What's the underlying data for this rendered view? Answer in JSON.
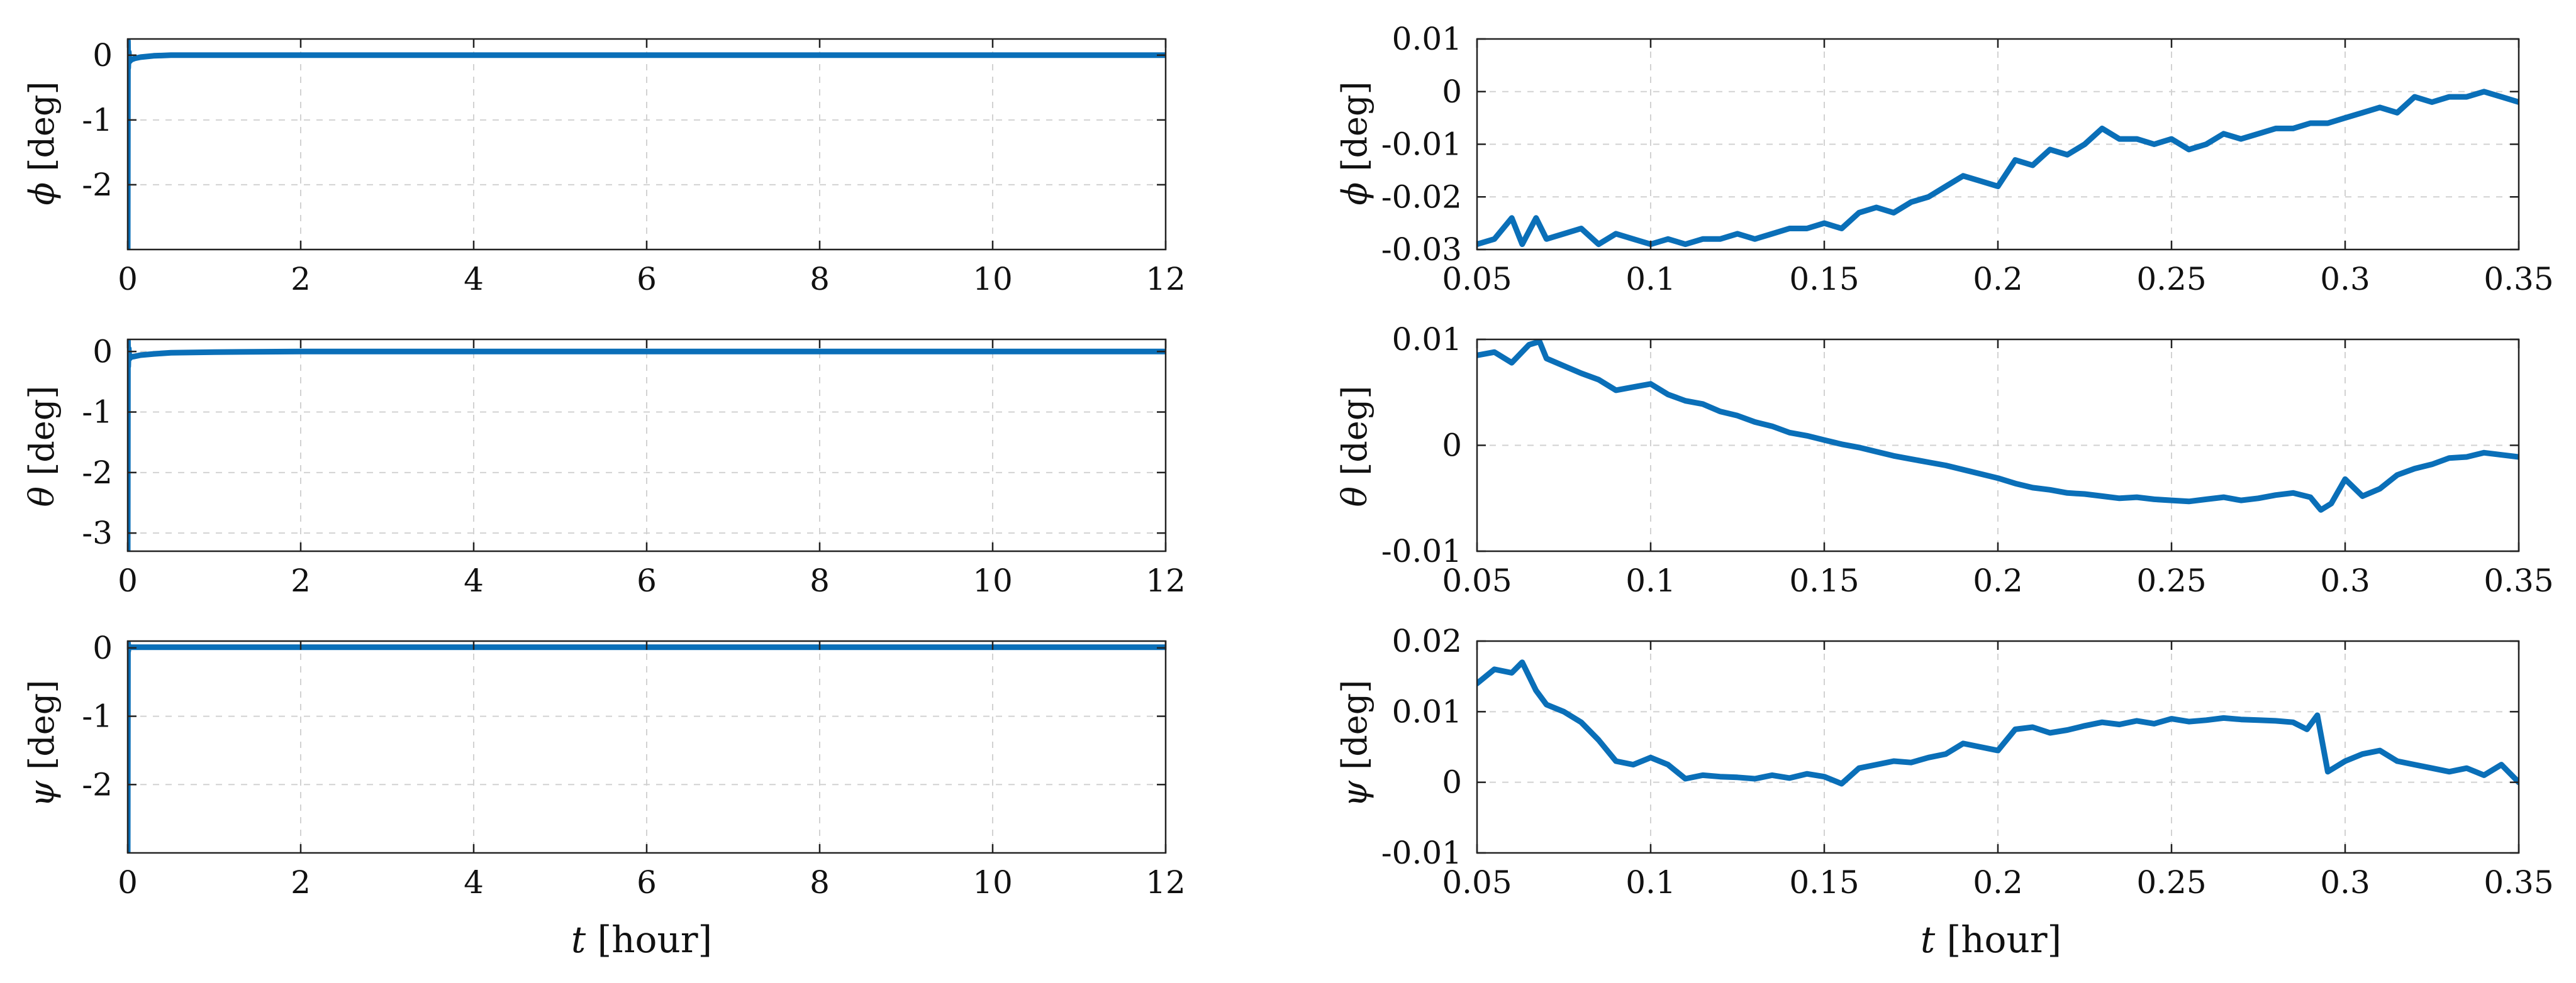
{
  "colors": {
    "line": "#0a6fb8",
    "grid": "#d2d2d2",
    "axis": "#222222"
  },
  "chart_data": [
    {
      "id": "phi_full",
      "type": "line",
      "title": "",
      "xlabel": "",
      "ylabel": "ϕ [deg]",
      "ylabel_symbol": "ϕ",
      "ylabel_unit": "[deg]",
      "xlim": [
        0,
        12
      ],
      "ylim": [
        -3,
        0.25
      ],
      "xticks": [
        0,
        2,
        4,
        6,
        8,
        10,
        12
      ],
      "xtick_labels": [
        "0",
        "2",
        "4",
        "6",
        "8",
        "10",
        "12"
      ],
      "yticks": [
        0,
        -1,
        -2
      ],
      "ytick_labels": [
        "0",
        "-1",
        "-2"
      ],
      "grid": true,
      "series": [
        {
          "name": "phi",
          "x": [
            0,
            0.003,
            0.006,
            0.012,
            0.02,
            0.04,
            0.08,
            0.15,
            0.3,
            0.5,
            1,
            2,
            4,
            6,
            8,
            10,
            12
          ],
          "y": [
            -3,
            0.22,
            -0.2,
            0.05,
            -0.1,
            -0.07,
            -0.05,
            -0.03,
            -0.01,
            0.0,
            0.0,
            0.0,
            0.0,
            0.0,
            0.0,
            0.0,
            0.0
          ]
        }
      ]
    },
    {
      "id": "phi_zoom",
      "type": "line",
      "title": "",
      "xlabel": "",
      "ylabel": "ϕ [deg]",
      "ylabel_symbol": "ϕ",
      "ylabel_unit": "[deg]",
      "xlim": [
        0.05,
        0.35
      ],
      "ylim": [
        -0.03,
        0.01
      ],
      "xticks": [
        0.05,
        0.1,
        0.15,
        0.2,
        0.25,
        0.3,
        0.35
      ],
      "xtick_labels": [
        "0.05",
        "0.1",
        "0.15",
        "0.2",
        "0.25",
        "0.3",
        "0.35"
      ],
      "yticks": [
        0.01,
        0,
        -0.01,
        -0.02,
        -0.03
      ],
      "ytick_labels": [
        "0.01",
        "0",
        "-0.01",
        "-0.02",
        "-0.03"
      ],
      "grid": true,
      "series": [
        {
          "name": "phi",
          "x": [
            0.05,
            0.055,
            0.06,
            0.063,
            0.067,
            0.07,
            0.075,
            0.08,
            0.085,
            0.09,
            0.095,
            0.1,
            0.105,
            0.11,
            0.115,
            0.12,
            0.125,
            0.13,
            0.135,
            0.14,
            0.145,
            0.15,
            0.155,
            0.16,
            0.165,
            0.17,
            0.175,
            0.18,
            0.185,
            0.19,
            0.195,
            0.2,
            0.205,
            0.21,
            0.215,
            0.22,
            0.225,
            0.23,
            0.235,
            0.24,
            0.245,
            0.25,
            0.255,
            0.26,
            0.265,
            0.27,
            0.275,
            0.28,
            0.285,
            0.29,
            0.295,
            0.3,
            0.305,
            0.31,
            0.315,
            0.32,
            0.325,
            0.33,
            0.335,
            0.34,
            0.345,
            0.35
          ],
          "y": [
            -0.029,
            -0.028,
            -0.024,
            -0.029,
            -0.024,
            -0.028,
            -0.027,
            -0.026,
            -0.029,
            -0.027,
            -0.028,
            -0.029,
            -0.028,
            -0.029,
            -0.028,
            -0.028,
            -0.027,
            -0.028,
            -0.027,
            -0.026,
            -0.026,
            -0.025,
            -0.026,
            -0.023,
            -0.022,
            -0.023,
            -0.021,
            -0.02,
            -0.018,
            -0.016,
            -0.017,
            -0.018,
            -0.013,
            -0.014,
            -0.011,
            -0.012,
            -0.01,
            -0.007,
            -0.009,
            -0.009,
            -0.01,
            -0.009,
            -0.011,
            -0.01,
            -0.008,
            -0.009,
            -0.008,
            -0.007,
            -0.007,
            -0.006,
            -0.006,
            -0.005,
            -0.004,
            -0.003,
            -0.004,
            -0.001,
            -0.002,
            -0.001,
            -0.001,
            0.0,
            -0.001,
            -0.002
          ]
        }
      ]
    },
    {
      "id": "theta_full",
      "type": "line",
      "title": "",
      "xlabel": "",
      "ylabel": "θ [deg]",
      "ylabel_symbol": "θ",
      "ylabel_unit": "[deg]",
      "xlim": [
        0,
        12
      ],
      "ylim": [
        -3.3,
        0.2
      ],
      "xticks": [
        0,
        2,
        4,
        6,
        8,
        10,
        12
      ],
      "xtick_labels": [
        "0",
        "2",
        "4",
        "6",
        "8",
        "10",
        "12"
      ],
      "yticks": [
        0,
        -1,
        -2,
        -3
      ],
      "ytick_labels": [
        "0",
        "-1",
        "-2",
        "-3"
      ],
      "grid": true,
      "series": [
        {
          "name": "theta",
          "x": [
            0,
            0.003,
            0.006,
            0.012,
            0.02,
            0.04,
            0.08,
            0.15,
            0.3,
            0.5,
            1,
            2,
            4,
            6,
            8,
            10,
            12
          ],
          "y": [
            -3.3,
            0.18,
            -0.25,
            0.05,
            -0.12,
            -0.09,
            -0.08,
            -0.06,
            -0.04,
            -0.02,
            -0.01,
            0.0,
            0.0,
            0.0,
            0.0,
            0.0,
            0.0
          ]
        }
      ]
    },
    {
      "id": "theta_zoom",
      "type": "line",
      "title": "",
      "xlabel": "",
      "ylabel": "θ [deg]",
      "ylabel_symbol": "θ",
      "ylabel_unit": "[deg]",
      "xlim": [
        0.05,
        0.35
      ],
      "ylim": [
        -0.01,
        0.01
      ],
      "xticks": [
        0.05,
        0.1,
        0.15,
        0.2,
        0.25,
        0.3,
        0.35
      ],
      "xtick_labels": [
        "0.05",
        "0.1",
        "0.15",
        "0.2",
        "0.25",
        "0.3",
        "0.35"
      ],
      "yticks": [
        0.01,
        0,
        -0.01
      ],
      "ytick_labels": [
        "0.01",
        "0",
        "-0.01"
      ],
      "grid": true,
      "series": [
        {
          "name": "theta",
          "x": [
            0.05,
            0.055,
            0.06,
            0.065,
            0.068,
            0.07,
            0.075,
            0.08,
            0.085,
            0.09,
            0.095,
            0.1,
            0.105,
            0.11,
            0.115,
            0.12,
            0.125,
            0.13,
            0.135,
            0.14,
            0.145,
            0.15,
            0.155,
            0.16,
            0.165,
            0.17,
            0.175,
            0.18,
            0.185,
            0.19,
            0.195,
            0.2,
            0.205,
            0.21,
            0.215,
            0.22,
            0.225,
            0.23,
            0.235,
            0.24,
            0.245,
            0.25,
            0.255,
            0.26,
            0.265,
            0.27,
            0.275,
            0.28,
            0.285,
            0.29,
            0.293,
            0.296,
            0.3,
            0.305,
            0.31,
            0.315,
            0.32,
            0.325,
            0.33,
            0.335,
            0.34,
            0.345,
            0.35
          ],
          "y": [
            0.0085,
            0.0088,
            0.0078,
            0.0095,
            0.0098,
            0.0082,
            0.0075,
            0.0068,
            0.0062,
            0.0052,
            0.0055,
            0.0058,
            0.0048,
            0.0042,
            0.0039,
            0.0032,
            0.0028,
            0.0022,
            0.0018,
            0.0012,
            0.0009,
            0.0005,
            0.0001,
            -0.0002,
            -0.0006,
            -0.001,
            -0.0013,
            -0.0016,
            -0.0019,
            -0.0023,
            -0.0027,
            -0.0031,
            -0.0036,
            -0.004,
            -0.0042,
            -0.0045,
            -0.0046,
            -0.0048,
            -0.005,
            -0.0049,
            -0.0051,
            -0.0052,
            -0.0053,
            -0.0051,
            -0.0049,
            -0.0052,
            -0.005,
            -0.0047,
            -0.0045,
            -0.0049,
            -0.0061,
            -0.0055,
            -0.0032,
            -0.0048,
            -0.0041,
            -0.0028,
            -0.0022,
            -0.0018,
            -0.0012,
            -0.0011,
            -0.0007,
            -0.0009,
            -0.0011
          ]
        }
      ]
    },
    {
      "id": "psi_full",
      "type": "line",
      "title": "",
      "xlabel": "t [hour]",
      "ylabel": "ψ [deg]",
      "ylabel_symbol": "ψ",
      "ylabel_unit": "[deg]",
      "xlabel_symbol": "t",
      "xlabel_unit": "[hour]",
      "xlim": [
        0,
        12
      ],
      "ylim": [
        -3,
        0.1
      ],
      "xticks": [
        0,
        2,
        4,
        6,
        8,
        10,
        12
      ],
      "xtick_labels": [
        "0",
        "2",
        "4",
        "6",
        "8",
        "10",
        "12"
      ],
      "yticks": [
        0,
        -1,
        -2
      ],
      "ytick_labels": [
        "0",
        "-1",
        "-2"
      ],
      "grid": true,
      "series": [
        {
          "name": "psi",
          "x": [
            0,
            0.003,
            0.006,
            0.012,
            0.03,
            0.1,
            0.3,
            1,
            2,
            4,
            6,
            8,
            10,
            12
          ],
          "y": [
            -3,
            0.08,
            -0.05,
            0.03,
            0.01,
            0.01,
            0.01,
            0.01,
            0.01,
            0.01,
            0.01,
            0.01,
            0.01,
            0.01
          ]
        }
      ]
    },
    {
      "id": "psi_zoom",
      "type": "line",
      "title": "",
      "xlabel": "t [hour]",
      "ylabel": "ψ [deg]",
      "ylabel_symbol": "ψ",
      "ylabel_unit": "[deg]",
      "xlabel_symbol": "t",
      "xlabel_unit": "[hour]",
      "xlim": [
        0.05,
        0.35
      ],
      "ylim": [
        -0.01,
        0.02
      ],
      "xticks": [
        0.05,
        0.1,
        0.15,
        0.2,
        0.25,
        0.3,
        0.35
      ],
      "xtick_labels": [
        "0.05",
        "0.1",
        "0.15",
        "0.2",
        "0.25",
        "0.3",
        "0.35"
      ],
      "yticks": [
        0.02,
        0.01,
        0,
        -0.01
      ],
      "ytick_labels": [
        "0.02",
        "0.01",
        "0",
        "-0.01"
      ],
      "grid": true,
      "series": [
        {
          "name": "psi",
          "x": [
            0.05,
            0.055,
            0.06,
            0.063,
            0.067,
            0.07,
            0.075,
            0.08,
            0.085,
            0.09,
            0.095,
            0.1,
            0.105,
            0.11,
            0.115,
            0.12,
            0.125,
            0.13,
            0.135,
            0.14,
            0.145,
            0.15,
            0.155,
            0.16,
            0.165,
            0.17,
            0.175,
            0.18,
            0.185,
            0.19,
            0.195,
            0.2,
            0.205,
            0.21,
            0.215,
            0.22,
            0.225,
            0.23,
            0.235,
            0.24,
            0.245,
            0.25,
            0.255,
            0.26,
            0.265,
            0.27,
            0.275,
            0.28,
            0.285,
            0.289,
            0.292,
            0.295,
            0.3,
            0.305,
            0.31,
            0.315,
            0.32,
            0.325,
            0.33,
            0.335,
            0.34,
            0.345,
            0.35
          ],
          "y": [
            0.014,
            0.016,
            0.0155,
            0.017,
            0.013,
            0.011,
            0.01,
            0.0085,
            0.006,
            0.003,
            0.0025,
            0.0035,
            0.0025,
            0.0005,
            0.001,
            0.0008,
            0.0007,
            0.0005,
            0.001,
            0.0006,
            0.0012,
            0.0008,
            -0.0002,
            0.002,
            0.0025,
            0.003,
            0.0028,
            0.0035,
            0.004,
            0.0055,
            0.005,
            0.0045,
            0.0075,
            0.0078,
            0.007,
            0.0074,
            0.008,
            0.0085,
            0.0082,
            0.0087,
            0.0083,
            0.009,
            0.0086,
            0.0088,
            0.0091,
            0.0089,
            0.0088,
            0.0087,
            0.0085,
            0.0075,
            0.0095,
            0.0015,
            0.003,
            0.004,
            0.0045,
            0.003,
            0.0025,
            0.002,
            0.0015,
            0.002,
            0.001,
            0.0025,
            0.0
          ]
        }
      ]
    }
  ]
}
